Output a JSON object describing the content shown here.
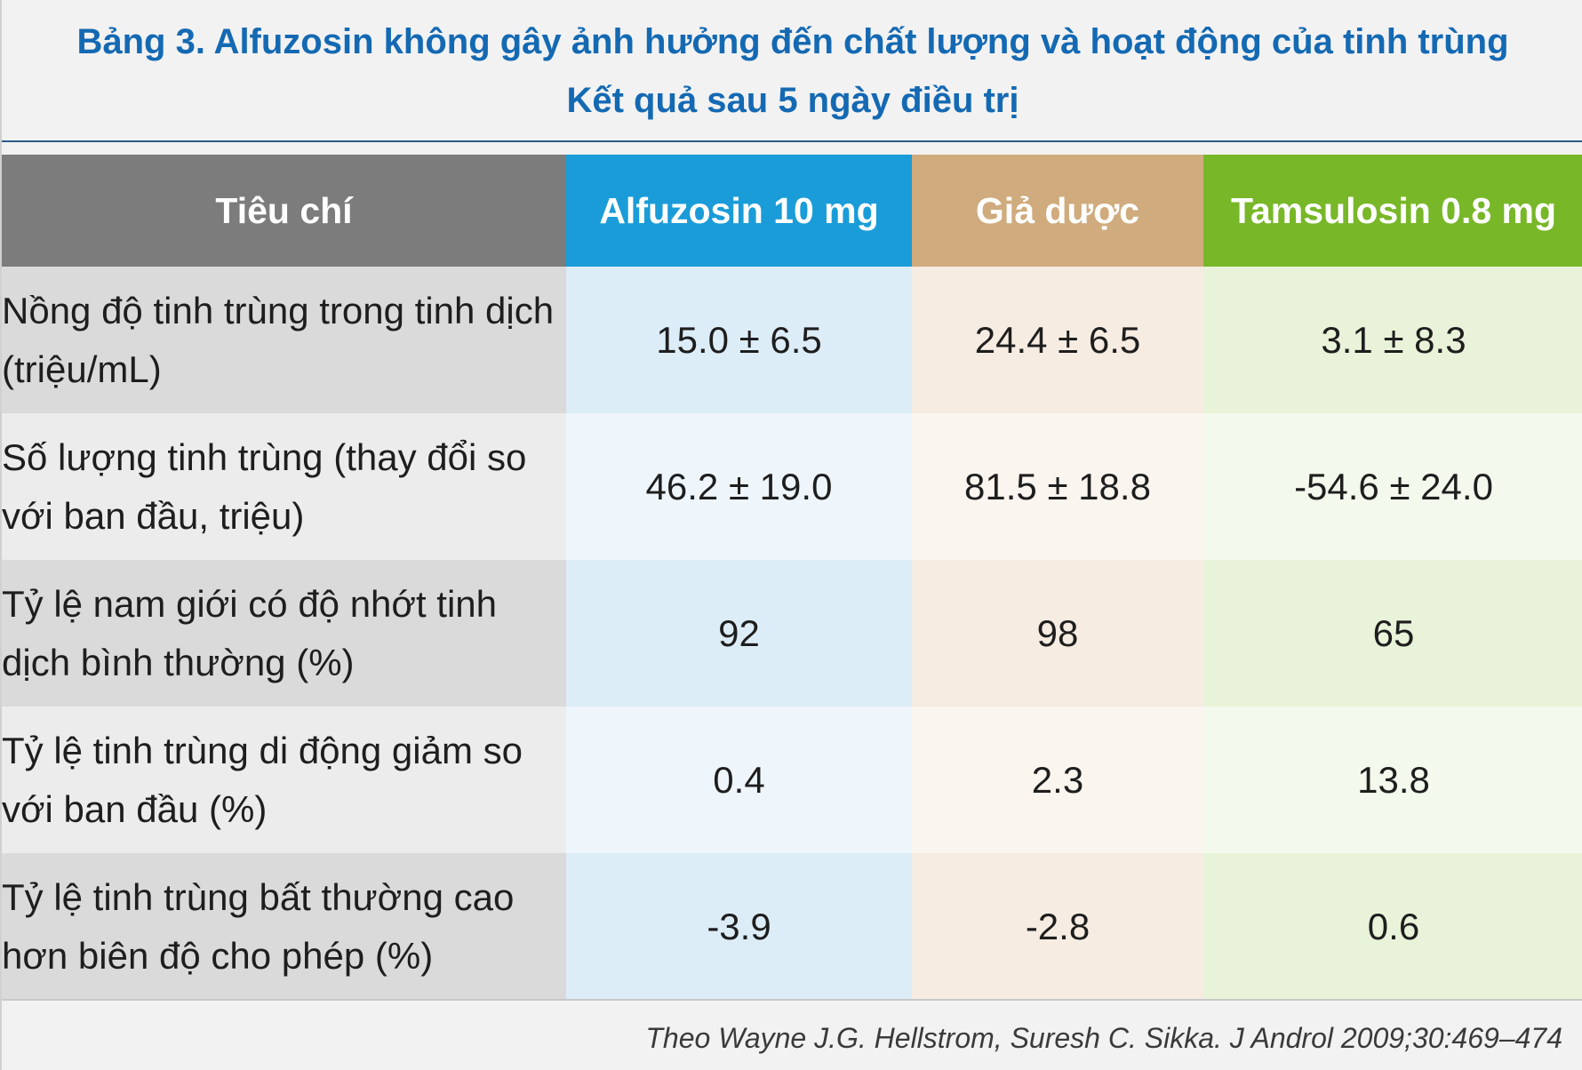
{
  "title": {
    "line1": "Bảng 3. Alfuzosin không gây ảnh hưởng đến chất lượng và hoạt động của tinh trùng",
    "line2": "Kết quả sau 5 ngày điều trị"
  },
  "table": {
    "headers": [
      "Tiêu chí",
      "Alfuzosin 10 mg",
      "Giả dược",
      "Tamsulosin 0.8 mg"
    ],
    "header_colors": [
      "#7c7c7c",
      "#1a9cd8",
      "#cfab7e",
      "#78b728"
    ],
    "rows": [
      {
        "criterion": "Nồng độ tinh trùng trong tinh dịch (triệu/mL)",
        "alfuzosin": "15.0 ± 6.5",
        "placebo": "24.4 ± 6.5",
        "tamsulosin": "3.1 ± 8.3"
      },
      {
        "criterion": "Số lượng tinh trùng (thay đổi so với ban đầu, triệu)",
        "alfuzosin": "46.2 ± 19.0",
        "placebo": "81.5 ± 18.8",
        "tamsulosin": "-54.6 ± 24.0"
      },
      {
        "criterion": "Tỷ lệ nam giới có độ nhớt tinh dịch bình thường (%)",
        "alfuzosin": "92",
        "placebo": "98",
        "tamsulosin": "65"
      },
      {
        "criterion": "Tỷ lệ tinh trùng di động giảm so với ban đầu (%)",
        "alfuzosin": "0.4",
        "placebo": "2.3",
        "tamsulosin": "13.8"
      },
      {
        "criterion": "Tỷ lệ tinh trùng bất thường cao hơn biên độ cho phép (%)",
        "alfuzosin": "-3.9",
        "placebo": "-2.8",
        "tamsulosin": "0.6"
      }
    ]
  },
  "source": "Theo Wayne J.G. Hellstrom, Suresh C. Sikka. J Androl 2009;30:469–474"
}
